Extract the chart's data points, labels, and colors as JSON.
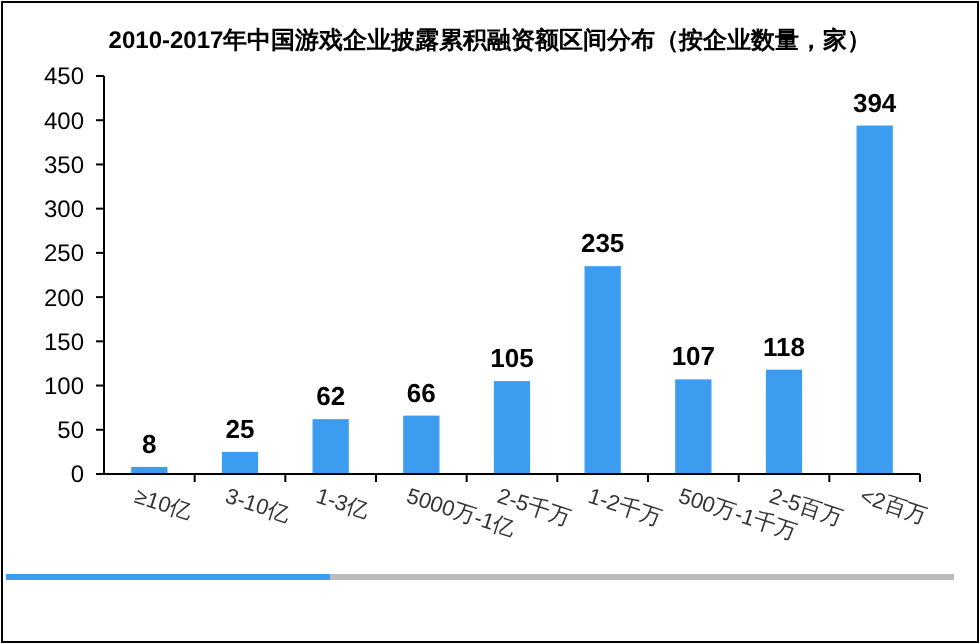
{
  "chart_data": {
    "type": "bar",
    "title": "2010-2017年中国游戏企业披露累积融资额区间分布（按企业数量，家）",
    "categories": [
      "≥10亿",
      "3-10亿",
      "1-3亿",
      "5000万-1亿",
      "2-5千万",
      "1-2千万",
      "500万-1千万",
      "2-5百万",
      "<2百万"
    ],
    "values": [
      8,
      25,
      62,
      66,
      105,
      235,
      107,
      118,
      394
    ],
    "color": "#3b9cf0",
    "ylim": [
      0,
      450
    ],
    "yticks": [
      0,
      50,
      100,
      150,
      200,
      250,
      300,
      350,
      400,
      450
    ],
    "grid": false,
    "data_labels": true
  }
}
